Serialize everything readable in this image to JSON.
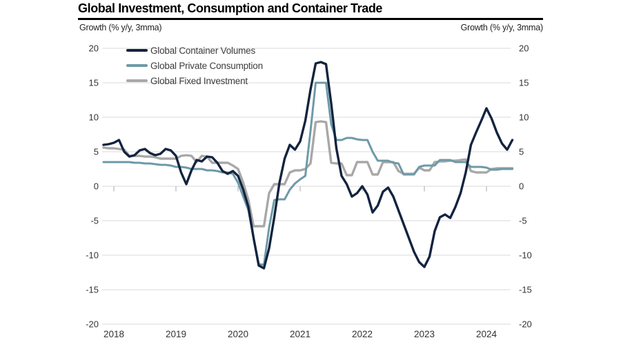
{
  "header": {
    "title": "Global Investment, Consumption and Container Trade",
    "left_axis_caption": "Growth (% y/y, 3mma)",
    "right_axis_caption": "Growth (% y/y, 3mma)"
  },
  "chart_data": {
    "type": "line",
    "title": "Global Investment, Consumption and Container Trade",
    "ylabel_left": "Growth (% y/y, 3mma)",
    "ylabel_right": "Growth (% y/y, 3mma)",
    "ylim": [
      -20,
      20
    ],
    "yticks": [
      20,
      15,
      10,
      5,
      0,
      -5,
      -10,
      -15,
      -20
    ],
    "xticks": [
      2018,
      2019,
      2020,
      2021,
      2022,
      2023,
      2024
    ],
    "grid": true,
    "legend_position": "top-left",
    "x_start": "2017-11",
    "x_freq": "monthly",
    "grid_color": "#dadada",
    "tick_color": "#c4c4c4",
    "label_color": "#333333",
    "series": [
      {
        "name": "Global Container Volumes",
        "color": "#13233f",
        "width": 3.4,
        "values": [
          6.0,
          6.1,
          6.3,
          6.7,
          5.0,
          4.3,
          4.5,
          5.2,
          5.4,
          4.8,
          4.5,
          4.7,
          5.4,
          5.2,
          4.4,
          2.0,
          0.3,
          2.3,
          3.8,
          3.6,
          4.3,
          4.2,
          3.4,
          2.2,
          1.8,
          2.2,
          1.5,
          -0.5,
          -3.0,
          -7.5,
          -11.5,
          -11.9,
          -9.0,
          -4.5,
          0.5,
          4.0,
          6.0,
          5.3,
          6.5,
          9.5,
          14.0,
          17.8,
          18.0,
          17.7,
          12.0,
          5.5,
          1.5,
          0.3,
          -1.5,
          -1.0,
          0.0,
          -1.2,
          -3.8,
          -2.8,
          -0.8,
          -0.2,
          -1.5,
          -3.5,
          -5.5,
          -7.5,
          -9.5,
          -11.0,
          -11.7,
          -10.2,
          -6.5,
          -4.5,
          -4.1,
          -4.6,
          -3.0,
          -1.0,
          2.0,
          6.0,
          7.8,
          9.5,
          11.3,
          9.8,
          7.8,
          6.2,
          5.3,
          6.7
        ]
      },
      {
        "name": "Global Private Consumption",
        "color": "#6d9aa8",
        "width": 3.0,
        "values": [
          3.5,
          3.5,
          3.5,
          3.5,
          3.5,
          3.5,
          3.4,
          3.4,
          3.3,
          3.3,
          3.2,
          3.1,
          3.1,
          3.0,
          2.8,
          2.8,
          2.7,
          2.5,
          2.5,
          2.5,
          2.3,
          2.3,
          2.2,
          2.0,
          2.0,
          1.8,
          0.5,
          -1.5,
          -3.5,
          -7.5,
          -11.3,
          -11.4,
          -6.0,
          -2.0,
          -1.9,
          -1.9,
          -0.5,
          0.4,
          1.0,
          1.5,
          8.0,
          15.0,
          15.0,
          15.0,
          9.0,
          6.7,
          6.7,
          7.0,
          7.0,
          6.8,
          6.7,
          6.7,
          5.0,
          3.7,
          3.7,
          3.7,
          3.4,
          3.3,
          1.7,
          1.7,
          1.7,
          2.8,
          3.0,
          3.0,
          3.0,
          3.8,
          3.8,
          3.8,
          3.5,
          3.5,
          3.5,
          2.8,
          2.8,
          2.8,
          2.7,
          2.4,
          2.4,
          2.5,
          2.5,
          2.5
        ]
      },
      {
        "name": "Global Fixed Investment",
        "color": "#a8a8a8",
        "width": 3.4,
        "values": [
          5.6,
          5.5,
          5.5,
          5.4,
          5.3,
          4.4,
          4.4,
          4.4,
          4.3,
          4.3,
          4.2,
          4.0,
          4.0,
          4.0,
          4.0,
          4.4,
          4.5,
          4.4,
          3.5,
          4.4,
          4.3,
          3.4,
          3.4,
          3.4,
          3.4,
          3.0,
          2.5,
          0.5,
          -2.0,
          -5.8,
          -5.8,
          -5.8,
          -1.0,
          0.3,
          0.3,
          0.3,
          2.0,
          2.3,
          2.3,
          2.5,
          3.3,
          9.3,
          9.4,
          9.3,
          3.4,
          3.3,
          3.3,
          1.6,
          1.6,
          3.5,
          3.5,
          3.5,
          1.7,
          1.7,
          3.5,
          3.5,
          3.5,
          2.2,
          1.8,
          1.8,
          1.8,
          2.7,
          2.3,
          2.3,
          3.5,
          3.6,
          3.6,
          3.7,
          3.7,
          3.8,
          3.9,
          2.2,
          2.0,
          2.0,
          2.0,
          2.5,
          2.6,
          2.6,
          2.6,
          2.6
        ]
      }
    ]
  }
}
